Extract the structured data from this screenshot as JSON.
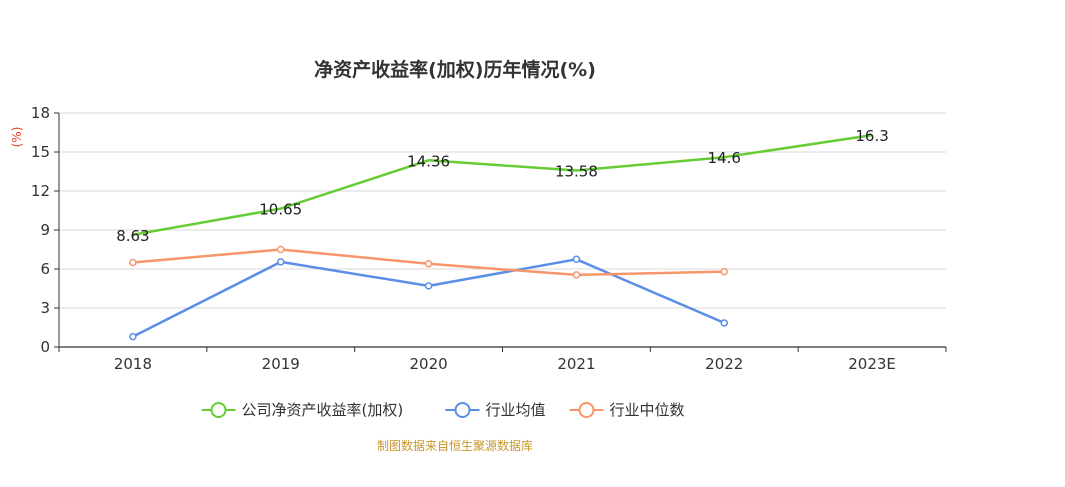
{
  "chart_data": {
    "type": "line",
    "title": "净资产收益率(加权)历年情况(%)",
    "y_unit": "(%)",
    "categories": [
      "2018",
      "2019",
      "2020",
      "2021",
      "2022",
      "2023E"
    ],
    "ylim": [
      0,
      18
    ],
    "yticks": [
      0,
      3,
      6,
      9,
      12,
      15,
      18
    ],
    "grid": true,
    "legend_position": "bottom-center",
    "series": [
      {
        "name": "公司净资产收益率(加权)",
        "color": "#66cc33",
        "values": [
          8.63,
          10.65,
          14.36,
          13.58,
          14.6,
          16.3
        ],
        "labels": [
          "8.63",
          "10.65",
          "14.36",
          "13.58",
          "14.6",
          "16.3"
        ],
        "show_labels": true,
        "show_points": false
      },
      {
        "name": "行业均值",
        "color": "#5b8ee6",
        "values": [
          0.8,
          6.55,
          4.7,
          6.75,
          1.85,
          null
        ],
        "show_labels": false,
        "show_points": true
      },
      {
        "name": "行业中位数",
        "color": "#f7966b",
        "values": [
          6.5,
          7.5,
          6.4,
          5.55,
          5.8,
          null
        ],
        "show_labels": false,
        "show_points": true
      }
    ],
    "source": "制图数据来自恒生聚源数据库",
    "source_color": "#c8962a",
    "unit_color": "#e8412b"
  }
}
